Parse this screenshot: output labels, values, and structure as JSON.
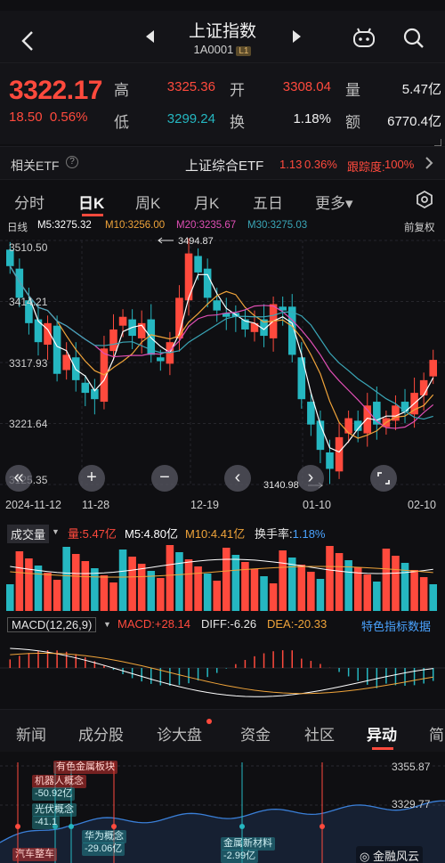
{
  "header": {
    "title": "上证指数",
    "code": "1A0001",
    "code_tag": "L1"
  },
  "quote": {
    "price": "3322.17",
    "change": "18.50",
    "change_pct": "0.56%",
    "high_label": "高",
    "high": "3325.36",
    "low_label": "低",
    "low": "3299.24",
    "open_label": "开",
    "open": "3308.04",
    "turnover_label": "换",
    "turnover": "1.18%",
    "volume_label": "量",
    "volume": "5.47亿",
    "amount_label": "额",
    "amount": "6770.4亿"
  },
  "etf": {
    "label": "相关ETF",
    "name": "上证综合ETF",
    "value": "1.13",
    "pct": "0.36%",
    "track_label": "跟踪度:",
    "track": "100%"
  },
  "period_tabs": [
    {
      "label": "分时",
      "active": false
    },
    {
      "label": "日K",
      "active": true
    },
    {
      "label": "周K",
      "active": false
    },
    {
      "label": "月K",
      "active": false
    },
    {
      "label": "五日",
      "active": false
    },
    {
      "label": "更多▾",
      "active": false
    }
  ],
  "ma": {
    "line_label": "日线",
    "m5": "M5:3275.32",
    "m10": "M10:3256.00",
    "m20": "M20:3235.67",
    "m30": "M30:3275.03",
    "adjust": "前复权"
  },
  "chart_labels": {
    "top": "3510.50",
    "upper_mid": "3414.21",
    "mid": "3317.93",
    "lower_mid": "3221.64",
    "bottom": "3125.35",
    "max_marker": "3494.87",
    "min_marker": "3140.98"
  },
  "dates": [
    "2024-11-12",
    "11-28",
    "12-19",
    "01-10",
    "02-10"
  ],
  "volume": {
    "menu": "成交量",
    "vol": "量:5.47亿",
    "m5": "M5:4.80亿",
    "m10": "M10:4.41亿",
    "turnover": "换手率:1.18%"
  },
  "macd": {
    "menu": "MACD(12,26,9)",
    "macd": "MACD:+28.14",
    "diff": "DIFF:-6.26",
    "dea": "DEA:-20.33",
    "special": "特色指标数据"
  },
  "bottom_tabs": [
    {
      "label": "新闻",
      "active": false
    },
    {
      "label": "成分股",
      "active": false
    },
    {
      "label": "诊大盘",
      "active": false,
      "dot": true
    },
    {
      "label": "资金",
      "active": false
    },
    {
      "label": "社区",
      "active": false
    },
    {
      "label": "异动",
      "active": true
    },
    {
      "label": "简",
      "active": false
    }
  ],
  "intraday": {
    "high": "3355.87",
    "last": "3329.77",
    "events": [
      {
        "text": "有色金属板块",
        "cls": "red"
      },
      {
        "text": "机器人概念",
        "cls": "red"
      },
      {
        "text": "-50.92亿",
        "cls": "cyan"
      },
      {
        "text": "光伏概念",
        "cls": "cyan"
      },
      {
        "text": "-41.1",
        "cls": "cyan"
      },
      {
        "text": "华为概念",
        "cls": "cyan"
      },
      {
        "text": "-29.06亿",
        "cls": "cyan"
      },
      {
        "text": "金属新材料",
        "cls": "cyan"
      },
      {
        "text": "-2.99亿",
        "cls": "cyan"
      },
      {
        "text": "汽车整车",
        "cls": "red"
      }
    ],
    "watermark": "金融风云"
  },
  "colors": {
    "up": "#ff4a3d",
    "down": "#25b7c1",
    "m5": "#ffffff",
    "m10": "#f0a43a",
    "m20": "#e04fb5",
    "m30": "#3aa7b8"
  },
  "chart_data": {
    "type": "candlestick",
    "approx_ohlc_closes": [
      3470,
      3420,
      3380,
      3350,
      3380,
      3300,
      3330,
      3290,
      3270,
      3260,
      3340,
      3370,
      3390,
      3360,
      3380,
      3330,
      3320,
      3350,
      3420,
      3490,
      3460,
      3420,
      3400,
      3390,
      3390,
      3370,
      3380,
      3360,
      3410,
      3400,
      3330,
      3260,
      3220,
      3180,
      3150,
      3200,
      3230,
      3210,
      3250,
      3220,
      3230,
      3250,
      3240,
      3270,
      3290,
      3322
    ]
  }
}
